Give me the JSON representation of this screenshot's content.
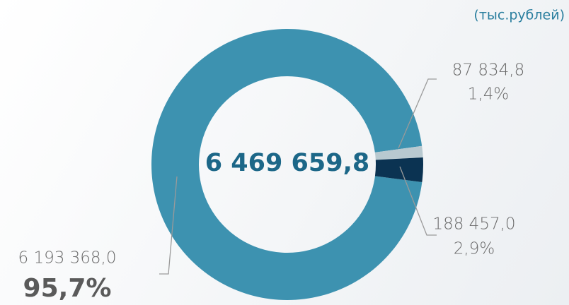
{
  "chart_data": {
    "type": "pie",
    "subtitle": "(тыс.рублей)",
    "total_label": "6 469 659,8",
    "values": [
      6193368.0,
      87834.8,
      188457.0
    ],
    "value_labels": [
      "6 193 368,0",
      "87 834,8",
      "188 457,0"
    ],
    "percent_labels": [
      "95,7%",
      "1,4%",
      "2,9%"
    ],
    "colors": [
      "#3d92b0",
      "#b8c9d0",
      "#0b3352"
    ],
    "donut": true
  }
}
